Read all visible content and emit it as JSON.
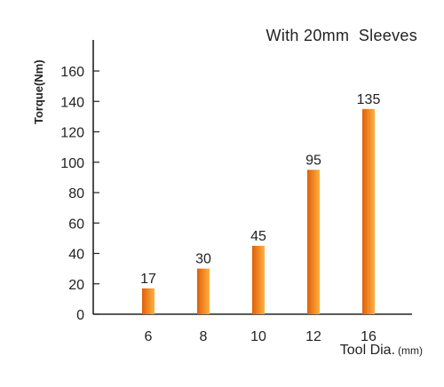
{
  "chart_data": {
    "type": "bar",
    "title": "With 20mm  Sleeves",
    "ylabel": "Torque(Nm)",
    "xlabel": "Tool Dia.",
    "xlabel_unit": "(mm)",
    "categories": [
      "6",
      "8",
      "10",
      "12",
      "16"
    ],
    "values": [
      17,
      30,
      45,
      95,
      135
    ],
    "data_labels": [
      "17",
      "30",
      "45",
      "95",
      "135"
    ],
    "ylim": [
      0,
      160
    ],
    "yticks": [
      "0",
      "20",
      "40",
      "60",
      "80",
      "100",
      "120",
      "140",
      "160"
    ],
    "grid": false,
    "bar_color_dark": "#e0600a",
    "bar_color_light": "#ffb040"
  }
}
